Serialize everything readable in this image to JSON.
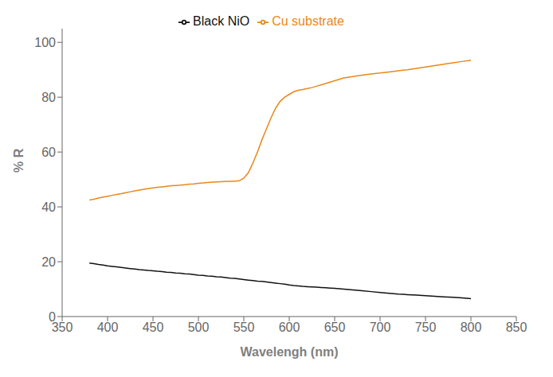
{
  "chart_data": {
    "type": "line",
    "xlabel": "Wavelengh (nm)",
    "ylabel": "% R",
    "xlim": [
      350,
      850
    ],
    "ylim": [
      0,
      105
    ],
    "xticks": [
      350,
      400,
      450,
      500,
      550,
      600,
      650,
      700,
      750,
      800,
      850
    ],
    "yticks": [
      0,
      20,
      40,
      60,
      80,
      100
    ],
    "legend": "top",
    "x": [
      380,
      385,
      390,
      395,
      400,
      405,
      410,
      415,
      420,
      425,
      430,
      435,
      440,
      445,
      450,
      455,
      460,
      465,
      470,
      475,
      480,
      485,
      490,
      495,
      500,
      505,
      510,
      515,
      520,
      525,
      530,
      535,
      540,
      545,
      550,
      555,
      560,
      565,
      570,
      575,
      580,
      585,
      590,
      595,
      600,
      605,
      610,
      615,
      620,
      625,
      630,
      635,
      640,
      645,
      650,
      660,
      670,
      680,
      690,
      700,
      710,
      720,
      730,
      740,
      750,
      760,
      770,
      780,
      790,
      800
    ],
    "series": [
      {
        "name": "Cu substrate",
        "color": "#E8881A",
        "values": [
          42.5,
          42.8,
          43.2,
          43.6,
          43.9,
          44.2,
          44.5,
          44.8,
          45.2,
          45.5,
          45.8,
          46.1,
          46.4,
          46.7,
          46.9,
          47.1,
          47.3,
          47.5,
          47.7,
          47.8,
          47.9,
          48.1,
          48.3,
          48.4,
          48.6,
          48.7,
          48.9,
          49.0,
          49.1,
          49.2,
          49.3,
          49.3,
          49.4,
          49.5,
          50.5,
          52.5,
          56.0,
          60.0,
          64.5,
          68.5,
          72.5,
          76.0,
          78.5,
          80.0,
          81.0,
          82.0,
          82.5,
          82.8,
          83.2,
          83.5,
          84.0,
          84.5,
          85.0,
          85.5,
          86.0,
          87.0,
          87.5,
          88.0,
          88.5,
          88.8,
          89.2,
          89.6,
          90.0,
          90.5,
          91.0,
          91.5,
          92.0,
          92.5,
          93.0,
          93.5
        ]
      },
      {
        "name": "Black NiO",
        "color": "#111111",
        "values": [
          19.5,
          19.3,
          19.0,
          18.8,
          18.5,
          18.3,
          18.1,
          17.9,
          17.7,
          17.5,
          17.3,
          17.1,
          17.0,
          16.8,
          16.7,
          16.5,
          16.4,
          16.2,
          16.1,
          15.9,
          15.8,
          15.6,
          15.5,
          15.3,
          15.1,
          15.0,
          14.8,
          14.7,
          14.5,
          14.4,
          14.2,
          14.0,
          13.9,
          13.7,
          13.5,
          13.3,
          13.1,
          12.9,
          12.8,
          12.6,
          12.4,
          12.2,
          12.0,
          11.8,
          11.5,
          11.3,
          11.2,
          11.0,
          10.9,
          10.8,
          10.7,
          10.6,
          10.5,
          10.4,
          10.3,
          10.0,
          9.7,
          9.4,
          9.1,
          8.8,
          8.5,
          8.2,
          8.0,
          7.8,
          7.6,
          7.4,
          7.2,
          7.0,
          6.8,
          6.5
        ]
      }
    ]
  }
}
